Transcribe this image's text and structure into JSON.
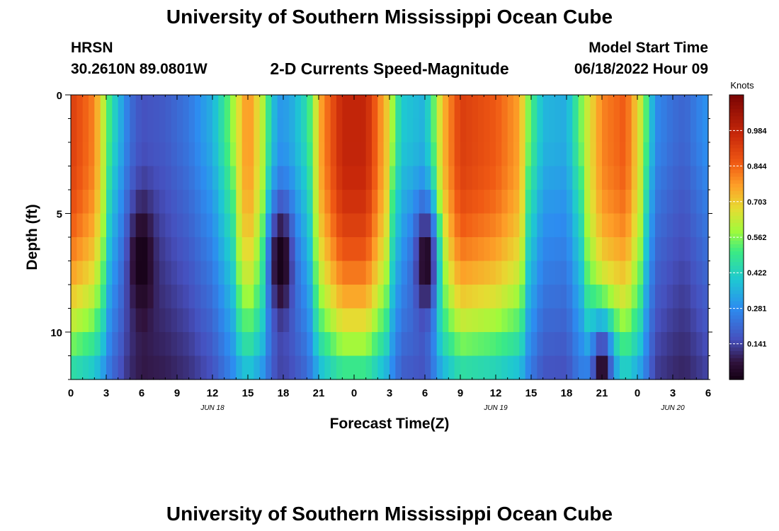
{
  "header": {
    "title": "University of Southern Mississippi Ocean Cube",
    "station": "HRSN",
    "coords": "30.2610N  89.0801W",
    "subtitle": "2-D Currents Speed-Magnitude",
    "model_start_label": "Model Start Time",
    "model_start_value": "06/18/2022 Hour 09"
  },
  "footer": {
    "title": "University of Southern Mississippi Ocean Cube"
  },
  "chart_data": {
    "type": "heatmap",
    "title": "2-D Currents Speed-Magnitude",
    "xlabel": "Forecast Time(Z)",
    "ylabel": "Depth (ft)",
    "x_range_hours": [
      0,
      54
    ],
    "y_range_ft": [
      0,
      12
    ],
    "y_ticks": [
      "0",
      "5",
      "10"
    ],
    "x_tick_labels": [
      "0",
      "3",
      "6",
      "9",
      "12",
      "15",
      "18",
      "21",
      "0",
      "3",
      "6",
      "9",
      "12",
      "15",
      "18",
      "21",
      "0",
      "3",
      "6"
    ],
    "date_labels": [
      {
        "text": "JUN 18",
        "hour": 12
      },
      {
        "text": "JUN 19",
        "hour": 36
      },
      {
        "text": "JUN 20",
        "hour": 51
      }
    ],
    "colorbar": {
      "label": "Knots",
      "ticks": [
        "0.984",
        "0.844",
        "0.703",
        "0.562",
        "0.422",
        "0.281",
        "0.141"
      ],
      "tick_values": [
        0.984,
        0.844,
        0.703,
        0.562,
        0.422,
        0.281,
        0.141
      ],
      "range": [
        0.0,
        1.125
      ]
    },
    "speed_model": {
      "note": "Approximate surface speed (knots) at forecast hour and depth multiplier, reconstructed from colors",
      "surface": [
        [
          0,
          0.92
        ],
        [
          2,
          0.8
        ],
        [
          3.5,
          0.45
        ],
        [
          5,
          0.22
        ],
        [
          6,
          0.16
        ],
        [
          8,
          0.18
        ],
        [
          10,
          0.24
        ],
        [
          12,
          0.35
        ],
        [
          13.5,
          0.55
        ],
        [
          15,
          0.8
        ],
        [
          16.2,
          0.62
        ],
        [
          17.5,
          0.3
        ],
        [
          18.5,
          0.32
        ],
        [
          20,
          0.45
        ],
        [
          21.3,
          0.78
        ],
        [
          23,
          0.98
        ],
        [
          25,
          0.98
        ],
        [
          26.8,
          0.7
        ],
        [
          28,
          0.4
        ],
        [
          30,
          0.35
        ],
        [
          31.5,
          0.72
        ],
        [
          33,
          0.92
        ],
        [
          36,
          0.86
        ],
        [
          38,
          0.76
        ],
        [
          38.8,
          0.55
        ],
        [
          40,
          0.36
        ],
        [
          42,
          0.34
        ],
        [
          43.5,
          0.6
        ],
        [
          45,
          0.8
        ],
        [
          47,
          0.86
        ],
        [
          48.5,
          0.6
        ],
        [
          49.5,
          0.28
        ],
        [
          51,
          0.22
        ],
        [
          52,
          0.2
        ],
        [
          54,
          0.3
        ]
      ],
      "minima": [
        {
          "hour": 6,
          "depth": 7,
          "value": 0.0
        },
        {
          "hour": 17.8,
          "depth": 7,
          "value": 0.0
        },
        {
          "hour": 30.1,
          "depth": 7,
          "value": 0.02
        },
        {
          "hour": 45,
          "depth": 11.8,
          "value": 0.03
        }
      ]
    }
  }
}
